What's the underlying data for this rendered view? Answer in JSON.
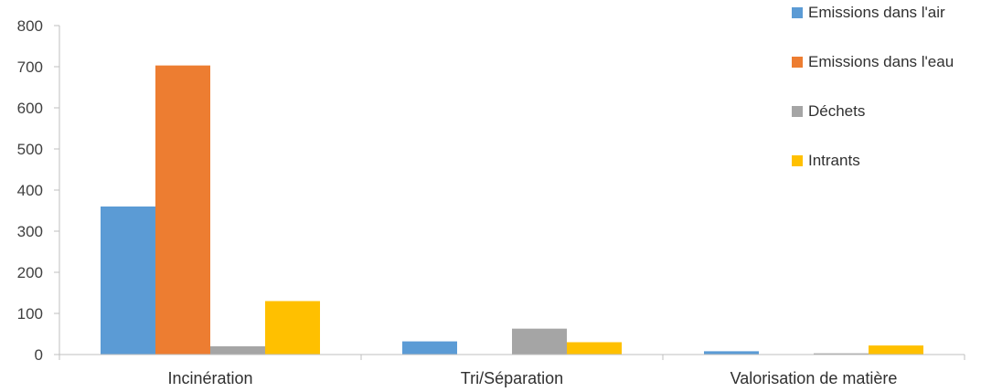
{
  "chart_data": {
    "type": "bar",
    "categories": [
      "Incinération",
      "Tri/Séparation",
      "Valorisation de matière"
    ],
    "series": [
      {
        "name": "Emissions dans l'air",
        "color": "#5b9bd5",
        "values": [
          360,
          32,
          8
        ]
      },
      {
        "name": "Emissions dans l'eau",
        "color": "#ed7d31",
        "values": [
          703,
          0,
          0
        ]
      },
      {
        "name": "Déchets",
        "color": "#a5a5a5",
        "values": [
          20,
          63,
          3
        ]
      },
      {
        "name": "Intrants",
        "color": "#ffc000",
        "values": [
          130,
          30,
          22
        ]
      }
    ],
    "ylim": [
      0,
      800
    ],
    "yticks": [
      0,
      100,
      200,
      300,
      400,
      500,
      600,
      700,
      800
    ],
    "grid": false,
    "legend": "top-right"
  }
}
